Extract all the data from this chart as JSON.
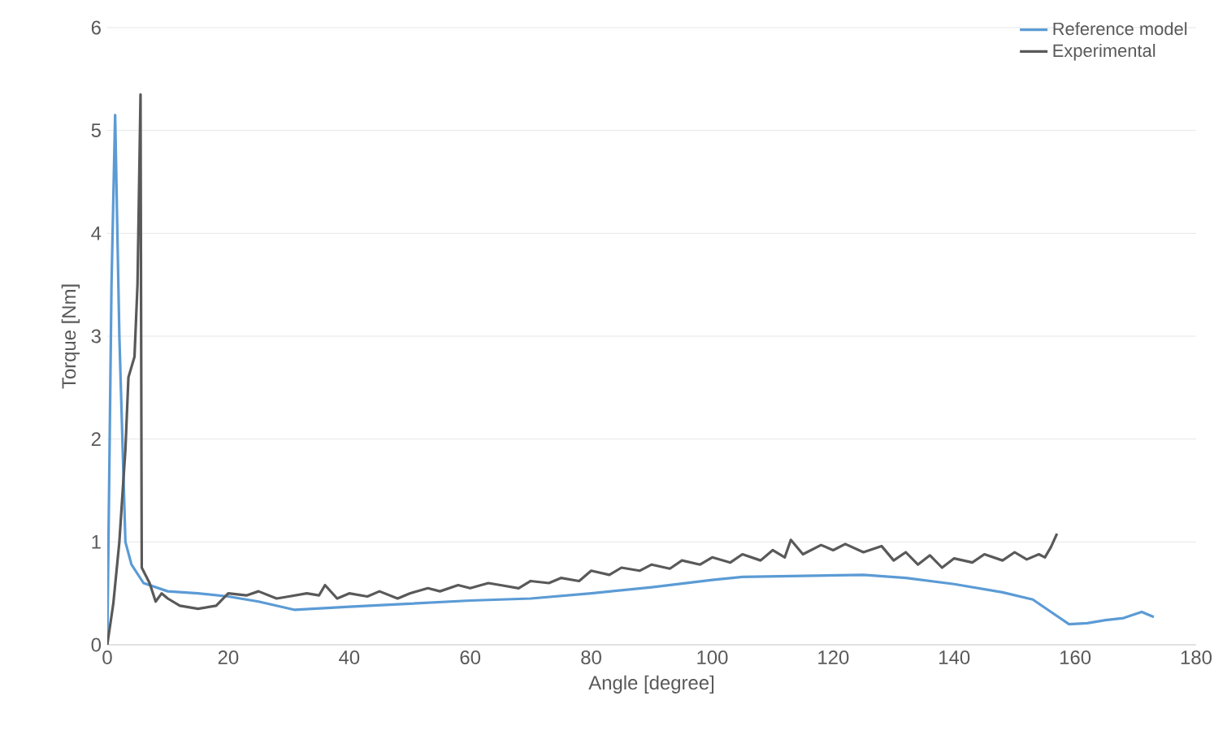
{
  "chart_data": {
    "type": "line",
    "xlabel": "Angle [degree]",
    "ylabel": "Torque [Nm]",
    "xlim": [
      0,
      180
    ],
    "xticks": [
      0,
      20,
      40,
      60,
      80,
      100,
      120,
      140,
      160,
      180
    ],
    "ylim": [
      0,
      6
    ],
    "yticks": [
      0,
      1,
      2,
      3,
      4,
      5,
      6
    ],
    "grid": "y",
    "legend": "top right",
    "marker": "none",
    "line_style": "solid",
    "series": [
      {
        "name": "Reference model",
        "color": "#5b9bd5",
        "x": [
          0,
          0.7,
          1.3,
          2,
          3,
          4,
          6,
          10,
          15,
          20,
          25,
          31,
          40,
          50,
          60,
          70,
          80,
          90,
          100,
          105,
          115,
          125,
          132,
          140,
          148,
          153,
          156,
          159,
          162,
          165,
          168,
          171,
          173
        ],
        "values": [
          0,
          3.5,
          5.15,
          3,
          1,
          0.78,
          0.6,
          0.52,
          0.5,
          0.47,
          0.42,
          0.34,
          0.37,
          0.4,
          0.43,
          0.45,
          0.5,
          0.56,
          0.63,
          0.66,
          0.67,
          0.68,
          0.65,
          0.59,
          0.51,
          0.44,
          0.32,
          0.2,
          0.21,
          0.24,
          0.26,
          0.32,
          0.27
        ]
      },
      {
        "name": "Experimental",
        "color": "#595959",
        "x": [
          0,
          1,
          2,
          3,
          3.5,
          4.5,
          5,
          5.5,
          5.7,
          7,
          8,
          9,
          10,
          12,
          15,
          18,
          20,
          23,
          25,
          28,
          30,
          33,
          35,
          36,
          38,
          40,
          43,
          45,
          48,
          50,
          53,
          55,
          58,
          60,
          63,
          65,
          68,
          70,
          73,
          75,
          78,
          80,
          83,
          85,
          88,
          90,
          93,
          95,
          98,
          100,
          103,
          105,
          108,
          110,
          112,
          113,
          115,
          118,
          120,
          122,
          125,
          128,
          130,
          132,
          134,
          136,
          138,
          140,
          143,
          145,
          148,
          150,
          152,
          154,
          155,
          156,
          157
        ],
        "values": [
          0,
          0.4,
          1,
          1.9,
          2.6,
          2.8,
          3.5,
          5.35,
          0.75,
          0.6,
          0.42,
          0.5,
          0.45,
          0.38,
          0.35,
          0.38,
          0.5,
          0.48,
          0.52,
          0.45,
          0.47,
          0.5,
          0.48,
          0.58,
          0.45,
          0.5,
          0.47,
          0.52,
          0.45,
          0.5,
          0.55,
          0.52,
          0.58,
          0.55,
          0.6,
          0.58,
          0.55,
          0.62,
          0.6,
          0.65,
          0.62,
          0.72,
          0.68,
          0.75,
          0.72,
          0.78,
          0.74,
          0.82,
          0.78,
          0.85,
          0.8,
          0.88,
          0.82,
          0.92,
          0.85,
          1.02,
          0.88,
          0.97,
          0.92,
          0.98,
          0.9,
          0.96,
          0.82,
          0.9,
          0.78,
          0.87,
          0.75,
          0.84,
          0.8,
          0.88,
          0.82,
          0.9,
          0.83,
          0.88,
          0.85,
          0.95,
          1.08
        ]
      }
    ]
  }
}
